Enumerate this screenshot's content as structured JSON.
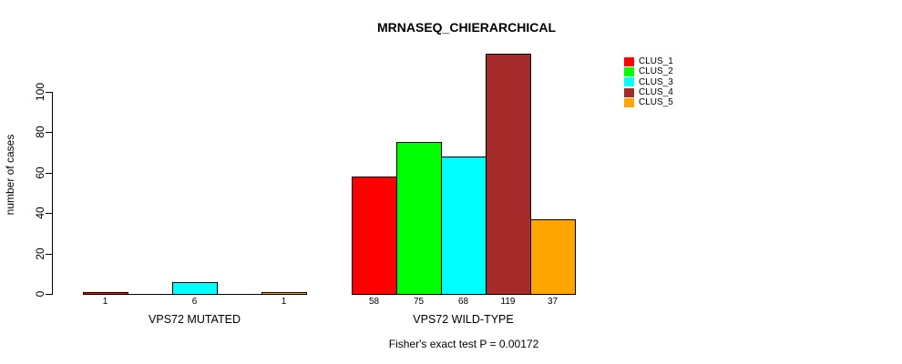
{
  "chart_data": {
    "type": "bar",
    "title": "MRNASEQ_CHIERARCHICAL",
    "ylabel": "number of cases",
    "xlabel": "",
    "footnote": "Fisher's exact test P = 0.00172",
    "categories": [
      "VPS72 MUTATED",
      "VPS72 WILD-TYPE"
    ],
    "series": [
      {
        "name": "CLUS_1",
        "color": "#FF0000",
        "values": [
          1,
          58
        ]
      },
      {
        "name": "CLUS_2",
        "color": "#00FF00",
        "values": [
          0,
          75
        ]
      },
      {
        "name": "CLUS_3",
        "color": "#00FFFF",
        "values": [
          6,
          68
        ]
      },
      {
        "name": "CLUS_4",
        "color": "#A52A2A",
        "values": [
          0,
          119
        ]
      },
      {
        "name": "CLUS_5",
        "color": "#FFA500",
        "values": [
          1,
          37
        ]
      }
    ],
    "bar_labels": [
      [
        "1",
        "",
        "6",
        "",
        "1"
      ],
      [
        "58",
        "75",
        "68",
        "119",
        "37"
      ]
    ],
    "yticks": [
      0,
      20,
      40,
      60,
      80,
      100
    ],
    "ylim": [
      0,
      119
    ],
    "grid": false,
    "legend_position": "right",
    "hide_zero_value_labels": true,
    "colors": {
      "background": "#FFFFFF",
      "axis": "#000000",
      "bar_border": "#000000"
    }
  }
}
